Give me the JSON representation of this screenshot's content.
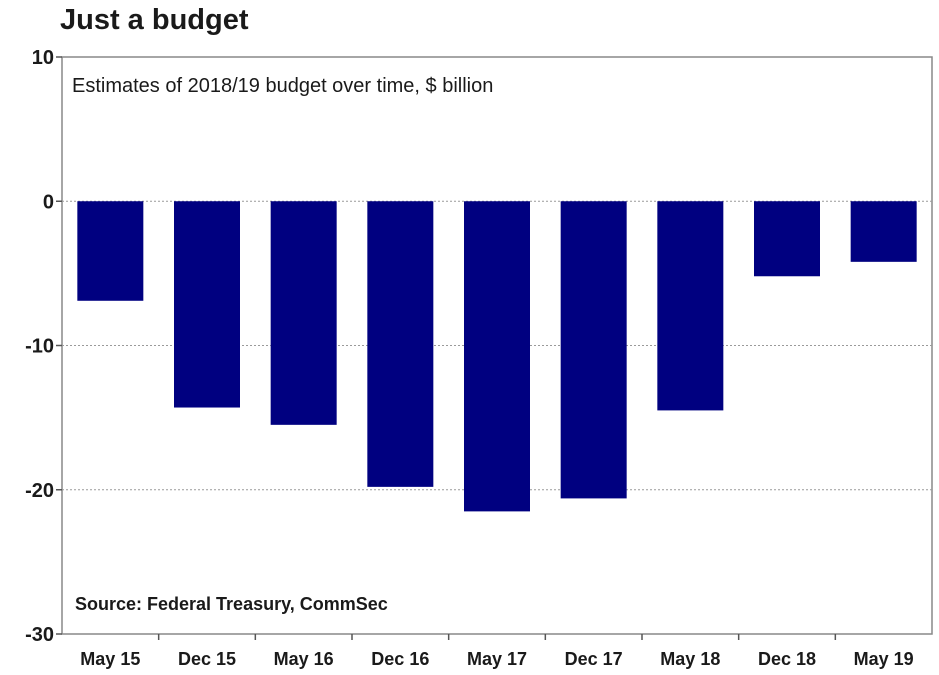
{
  "chart_data": {
    "type": "bar",
    "title": "Just a budget",
    "subtitle": "Estimates of 2018/19 budget over time, $ billion",
    "source": "Source: Federal Treasury, CommSec",
    "categories": [
      "May 15",
      "Dec 15",
      "May 16",
      "Dec 16",
      "May 17",
      "Dec 17",
      "May 18",
      "Dec 18",
      "May 19"
    ],
    "values": [
      -6.9,
      -14.3,
      -15.5,
      -19.8,
      -21.5,
      -20.6,
      -14.5,
      -5.2,
      -4.2
    ],
    "xlabel": "",
    "ylabel": "",
    "ylim": [
      -30,
      10
    ],
    "yticks": [
      10,
      0,
      -10,
      -20,
      -30
    ],
    "grid": true,
    "bar_color": "#000080"
  }
}
